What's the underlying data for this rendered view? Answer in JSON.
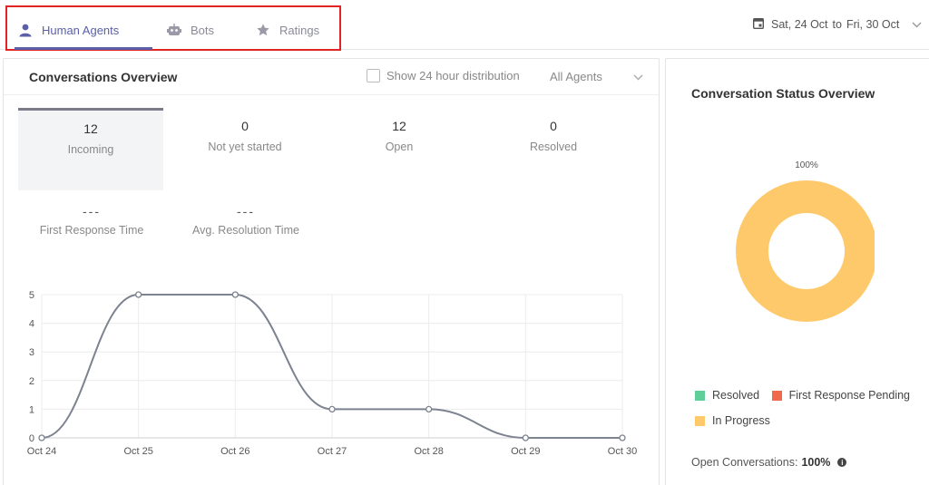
{
  "tabs": [
    {
      "label": "Human Agents",
      "icon": "person-icon",
      "active": true
    },
    {
      "label": "Bots",
      "icon": "bot-icon",
      "active": false
    },
    {
      "label": "Ratings",
      "icon": "star-icon",
      "active": false
    }
  ],
  "date_range": {
    "from": "Sat, 24 Oct",
    "to_word": "to",
    "to": "Fri, 30 Oct"
  },
  "overview": {
    "title": "Conversations Overview",
    "distribution_label": "Show 24 hour distribution",
    "agent_filter": "All Agents",
    "metrics": [
      {
        "value": "12",
        "label": "Incoming"
      },
      {
        "value": "0",
        "label": "Not yet started"
      },
      {
        "value": "12",
        "label": "Open"
      },
      {
        "value": "0",
        "label": "Resolved"
      }
    ],
    "timings": [
      {
        "value": "---",
        "label": "First Response Time"
      },
      {
        "value": "---",
        "label": "Avg. Resolution Time"
      }
    ]
  },
  "chart_data": {
    "type": "line",
    "categories": [
      "Oct 24",
      "Oct 25",
      "Oct 26",
      "Oct 27",
      "Oct 28",
      "Oct 29",
      "Oct 30"
    ],
    "values": [
      0,
      5,
      5,
      1,
      1,
      0,
      0
    ],
    "yticks": [
      "0",
      "1",
      "2",
      "3",
      "4",
      "5"
    ],
    "ylim": [
      0,
      5
    ],
    "grid": true,
    "line_color": "#7c8290"
  },
  "status": {
    "title": "Conversation Status Overview",
    "donut": {
      "type": "pie",
      "slices": [
        {
          "name": "In Progress",
          "value": 100,
          "color": "#fec96a"
        }
      ],
      "percent_label": "100%"
    },
    "legend": [
      {
        "label": "Resolved",
        "color": "#5fcf9a"
      },
      {
        "label": "First Response Pending",
        "color": "#f0694a"
      },
      {
        "label": "In Progress",
        "color": "#fec96a"
      }
    ],
    "open_label": "Open Conversations:",
    "open_value": "100%"
  },
  "colors": {
    "accent": "#5a5fa8",
    "highlight_border": "#e02424"
  }
}
